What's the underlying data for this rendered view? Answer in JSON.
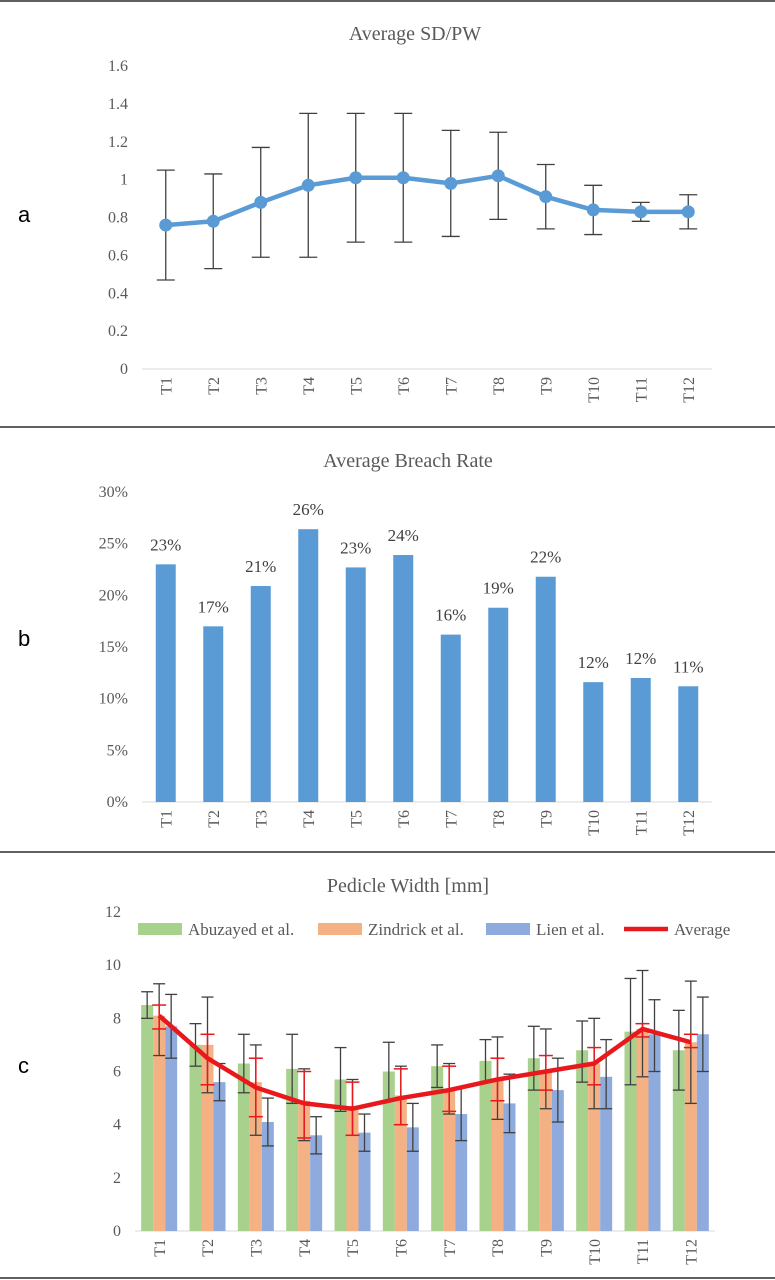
{
  "panels": [
    {
      "letter": "a",
      "chart_data": {
        "type": "line",
        "title": "Average SD/PW",
        "categories": [
          "T1",
          "T2",
          "T3",
          "T4",
          "T5",
          "T6",
          "T7",
          "T8",
          "T9",
          "T10",
          "T11",
          "T12"
        ],
        "values": [
          0.76,
          0.78,
          0.88,
          0.97,
          1.01,
          1.01,
          0.98,
          1.02,
          0.91,
          0.84,
          0.83,
          0.83
        ],
        "error_low": [
          0.47,
          0.53,
          0.59,
          0.59,
          0.67,
          0.67,
          0.7,
          0.79,
          0.74,
          0.71,
          0.78,
          0.74
        ],
        "error_high": [
          1.05,
          1.03,
          1.17,
          1.35,
          1.35,
          1.35,
          1.26,
          1.25,
          1.08,
          0.97,
          0.88,
          0.92
        ],
        "ylim": [
          0,
          1.6
        ],
        "yticks": [
          "0",
          "0.2",
          "0.4",
          "0.6",
          "0.8",
          "1",
          "1.2",
          "1.4",
          "1.6"
        ],
        "grid": false,
        "color": "#5b9bd5"
      }
    },
    {
      "letter": "b",
      "chart_data": {
        "type": "bar",
        "title": "Average Breach Rate",
        "categories": [
          "T1",
          "T2",
          "T3",
          "T4",
          "T5",
          "T6",
          "T7",
          "T8",
          "T9",
          "T10",
          "T11",
          "T12"
        ],
        "values": [
          23.0,
          17.0,
          20.9,
          26.4,
          22.7,
          23.9,
          16.2,
          18.8,
          21.8,
          11.6,
          12.0,
          11.2
        ],
        "data_labels": [
          "23%",
          "17%",
          "21%",
          "26%",
          "23%",
          "24%",
          "16%",
          "19%",
          "22%",
          "12%",
          "12%",
          "11%"
        ],
        "ylim": [
          0,
          30
        ],
        "yticks": [
          "0%",
          "5%",
          "10%",
          "15%",
          "20%",
          "25%",
          "30%"
        ],
        "grid": false,
        "color": "#5b9bd5"
      }
    },
    {
      "letter": "c",
      "chart_data": {
        "type": "bar",
        "title": "Pedicle Width [mm]",
        "categories": [
          "T1",
          "T2",
          "T3",
          "T4",
          "T5",
          "T6",
          "T7",
          "T8",
          "T9",
          "T10",
          "T11",
          "T12"
        ],
        "ylim": [
          0,
          12
        ],
        "yticks": [
          "0",
          "2",
          "4",
          "6",
          "8",
          "10",
          "12"
        ],
        "grid": false,
        "legend_position": "top",
        "series": [
          {
            "name": "Abuzayed et al.",
            "color": "#a9d18e",
            "values": [
              8.5,
              7.0,
              6.3,
              6.1,
              5.7,
              6.0,
              6.2,
              6.4,
              6.5,
              6.8,
              7.5,
              6.8
            ],
            "error_low": [
              8.0,
              6.2,
              5.2,
              4.8,
              4.5,
              4.9,
              5.4,
              5.6,
              5.3,
              5.6,
              5.5,
              5.3
            ],
            "error_high": [
              9.0,
              7.8,
              7.4,
              7.4,
              6.9,
              7.1,
              7.0,
              7.2,
              7.7,
              7.9,
              9.5,
              8.3
            ]
          },
          {
            "name": "Zindrick et al.",
            "color": "#f4b183",
            "values": [
              8.1,
              7.0,
              5.6,
              4.9,
              4.7,
              5.1,
              5.3,
              5.7,
              6.0,
              6.3,
              7.6,
              7.1
            ],
            "error_low": [
              6.6,
              5.2,
              3.6,
              3.4,
              3.6,
              4.0,
              4.4,
              4.2,
              4.6,
              4.6,
              5.8,
              4.8
            ],
            "error_high": [
              9.3,
              8.8,
              7.0,
              6.1,
              5.7,
              6.2,
              6.3,
              7.3,
              7.6,
              8.0,
              9.8,
              9.4
            ]
          },
          {
            "name": "Lien et al.",
            "color": "#8faadc",
            "values": [
              7.7,
              5.6,
              4.1,
              3.6,
              3.7,
              3.9,
              4.4,
              4.8,
              5.3,
              5.8,
              7.4,
              7.4
            ],
            "error_low": [
              6.5,
              4.9,
              3.2,
              2.9,
              3.0,
              3.0,
              3.4,
              3.7,
              4.1,
              4.6,
              6.0,
              6.0
            ],
            "error_high": [
              8.9,
              6.3,
              5.0,
              4.3,
              4.4,
              4.8,
              5.4,
              5.9,
              6.5,
              7.2,
              8.7,
              8.8
            ]
          },
          {
            "name": "Average",
            "color": "#e8181c",
            "type": "line",
            "values": [
              8.1,
              6.5,
              5.4,
              4.8,
              4.6,
              5.0,
              5.3,
              5.7,
              6.0,
              6.3,
              7.6,
              7.1
            ],
            "error_low": [
              7.6,
              5.5,
              4.3,
              3.5,
              3.6,
              4.0,
              4.5,
              4.9,
              5.3,
              5.5,
              7.3,
              6.9
            ],
            "error_high": [
              8.5,
              7.4,
              6.5,
              6.0,
              5.6,
              6.1,
              6.2,
              6.5,
              6.6,
              6.9,
              7.8,
              7.4
            ]
          }
        ]
      }
    }
  ]
}
